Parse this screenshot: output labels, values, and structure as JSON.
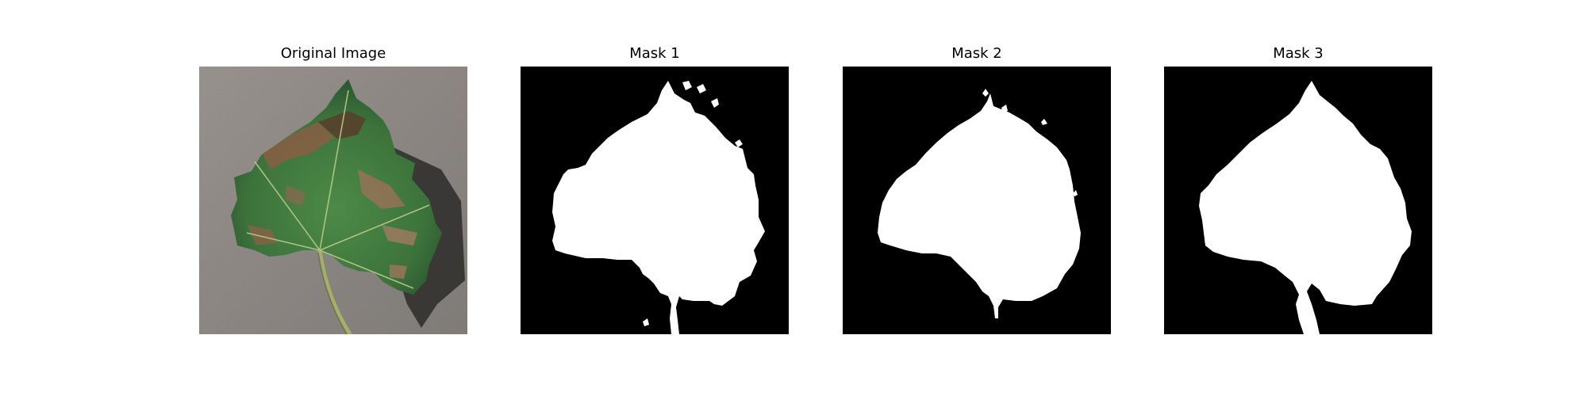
{
  "panels": [
    {
      "title": "Original Image",
      "kind": "photo"
    },
    {
      "title": "Mask 1",
      "kind": "mask"
    },
    {
      "title": "Mask 2",
      "kind": "mask"
    },
    {
      "title": "Mask 3",
      "kind": "mask"
    }
  ],
  "colors": {
    "mask_background": "#000000",
    "mask_foreground": "#ffffff",
    "photo_background": "#8f8a86",
    "leaf_green": "#3f7a3c",
    "leaf_dark": "#2a4f2c",
    "leaf_brown": "#8a5a3f",
    "stem": "#9aa86a"
  }
}
